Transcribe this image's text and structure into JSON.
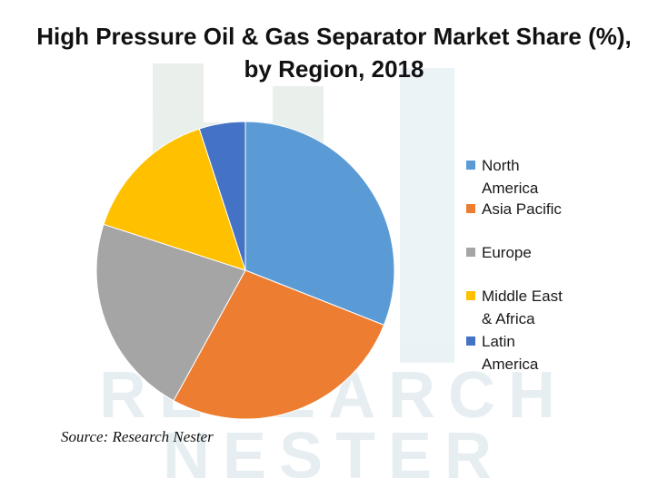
{
  "chart_data": {
    "type": "pie",
    "title_line1": "High Pressure Oil & Gas Separator Market Share (%),",
    "title_line2": "by Region, 2018",
    "categories": [
      "North America",
      "Asia Pacific",
      "Europe",
      "Middle East & Africa",
      "Latin America"
    ],
    "values": [
      31,
      27,
      22,
      15,
      5
    ],
    "colors": [
      "#5b9bd5",
      "#ed7d31",
      "#a5a5a5",
      "#ffc000",
      "#4472c4"
    ],
    "legend_position": "right",
    "legend_lines": [
      [
        "North",
        "America"
      ],
      [
        "Asia Pacific"
      ],
      [
        "Europe"
      ],
      [
        "Middle East",
        "& Africa"
      ],
      [
        "Latin",
        "America"
      ]
    ]
  },
  "source": "Source: Research Nester",
  "watermark": {
    "line1": "RESEARCH",
    "line2": "NESTER"
  }
}
